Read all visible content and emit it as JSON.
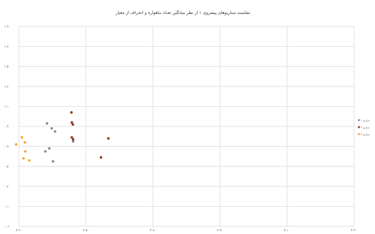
{
  "chart_data": {
    "type": "scatter",
    "title": "مقایسه سناریوهای پیشروی ۱ از نظر میانگین تعداد ماهواره و انحراف از معیار",
    "xlabel": "",
    "ylabel": "",
    "x_ticks": [
      "۳.۳۰",
      "۳.۵۰",
      "۳.۷۰",
      "۳.۹۰",
      "۴.۱۰",
      "۴.۳۰"
    ],
    "y_ticks": [
      "۱.۹",
      "۱.۷",
      "۱.۵",
      "۱.۳",
      "۱.۱",
      "۰.۹",
      "۰.۷",
      "۰.۵",
      "۰.۳",
      "۰.۱",
      "-۰.۱"
    ],
    "xlim": [
      3.3,
      4.3
    ],
    "ylim": [
      -0.1,
      1.9
    ],
    "grid": true,
    "legend_position": "right",
    "series": [
      {
        "name": "سناریو ۱",
        "color": "#8a8a8a",
        "points": [
          [
            3.462,
            0.75
          ],
          [
            3.408,
            0.85
          ],
          [
            3.398,
            0.88
          ],
          [
            3.391,
            0.68
          ],
          [
            3.384,
            0.93
          ],
          [
            3.379,
            0.65
          ],
          [
            3.402,
            0.55
          ]
        ]
      },
      {
        "name": "سناریو ۲",
        "color": "#8b3a1a",
        "points": [
          [
            3.462,
            0.77
          ],
          [
            3.458,
            0.79
          ],
          [
            3.461,
            0.92
          ],
          [
            3.458,
            0.94
          ],
          [
            3.457,
            1.04
          ],
          [
            3.567,
            0.78
          ],
          [
            3.545,
            0.59
          ]
        ]
      },
      {
        "name": "سناریو ۳",
        "color": "#f0a830",
        "points": [
          [
            3.314,
            0.58
          ],
          [
            3.319,
            0.65
          ],
          [
            3.318,
            0.74
          ],
          [
            3.309,
            0.79
          ],
          [
            3.292,
            0.72
          ],
          [
            3.331,
            0.56
          ]
        ]
      }
    ]
  }
}
